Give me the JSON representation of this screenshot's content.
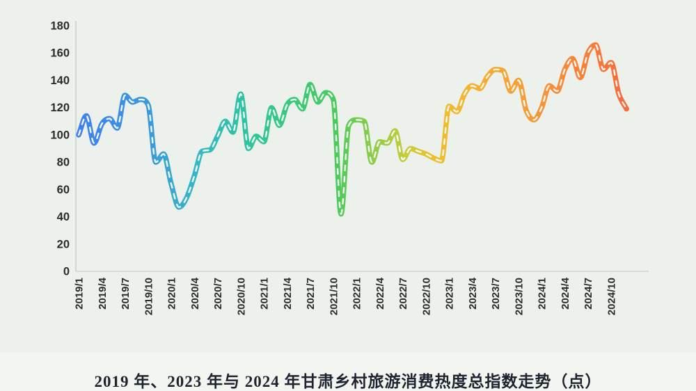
{
  "page": {
    "background": "#edf1ec",
    "footer_background": "#f3f5f0"
  },
  "chart_data": {
    "type": "line",
    "title": "2019 年、2023 年与 2024 年甘肃乡村旅游消费热度总指数走势（点）",
    "xlabel": "",
    "ylabel": "",
    "ylim": [
      0,
      180
    ],
    "y_ticks": [
      0,
      20,
      40,
      60,
      80,
      100,
      120,
      140,
      160,
      180
    ],
    "x_tick_step": 3,
    "grid": false,
    "legend": "none",
    "x": [
      "2019/1",
      "2019/2",
      "2019/3",
      "2019/4",
      "2019/5",
      "2019/6",
      "2019/7",
      "2019/8",
      "2019/9",
      "2019/10",
      "2019/11",
      "2019/12",
      "2020/1",
      "2020/2",
      "2020/3",
      "2020/4",
      "2020/5",
      "2020/6",
      "2020/7",
      "2020/8",
      "2020/9",
      "2020/10",
      "2020/11",
      "2020/12",
      "2021/1",
      "2021/2",
      "2021/3",
      "2021/4",
      "2021/5",
      "2021/6",
      "2021/7",
      "2021/8",
      "2021/9",
      "2021/10",
      "2021/11",
      "2021/12",
      "2022/1",
      "2022/2",
      "2022/3",
      "2022/4",
      "2022/5",
      "2022/6",
      "2022/7",
      "2022/8",
      "2022/9",
      "2022/10",
      "2022/11",
      "2022/12",
      "2023/1",
      "2023/2",
      "2023/3",
      "2023/4",
      "2023/5",
      "2023/6",
      "2023/7",
      "2023/8",
      "2023/9",
      "2023/10",
      "2023/11",
      "2023/12",
      "2024/1",
      "2024/2",
      "2024/3",
      "2024/4",
      "2024/5",
      "2024/6",
      "2024/7",
      "2024/8",
      "2024/9",
      "2024/10",
      "2024/11",
      "2024/12"
    ],
    "values": [
      100,
      114,
      94,
      108,
      112,
      105,
      129,
      124,
      126,
      122,
      80,
      86,
      64,
      47,
      54,
      70,
      88,
      89,
      99,
      110,
      102,
      130,
      90,
      99,
      95,
      120,
      107,
      122,
      126,
      119,
      137,
      124,
      131,
      126,
      42,
      107,
      111,
      110,
      80,
      95,
      94,
      103,
      82,
      90,
      88,
      86,
      83,
      81,
      121,
      117,
      130,
      136,
      134,
      143,
      148,
      147,
      132,
      140,
      118,
      111,
      120,
      136,
      132,
      148,
      156,
      142,
      160,
      166,
      148,
      153,
      130,
      119
    ],
    "line_style": {
      "stroke_width": 7.5,
      "center_dash_color": "#ffffff",
      "gradient_stops": [
        {
          "offset": 0.0,
          "color": "#3f80f0"
        },
        {
          "offset": 0.13,
          "color": "#3a9bd9"
        },
        {
          "offset": 0.22,
          "color": "#34b9c4"
        },
        {
          "offset": 0.31,
          "color": "#30c49f"
        },
        {
          "offset": 0.4,
          "color": "#3aca74"
        },
        {
          "offset": 0.47,
          "color": "#4ccb5d"
        },
        {
          "offset": 0.53,
          "color": "#86cd4c"
        },
        {
          "offset": 0.6,
          "color": "#c9cc3c"
        },
        {
          "offset": 0.65,
          "color": "#eec02f"
        },
        {
          "offset": 0.72,
          "color": "#f3b231"
        },
        {
          "offset": 0.8,
          "color": "#f6a037"
        },
        {
          "offset": 0.9,
          "color": "#f88538"
        },
        {
          "offset": 1.0,
          "color": "#f76b3c"
        }
      ]
    },
    "axis_style": {
      "line_color": "#c9cec9",
      "tick_label_color": "#2b2b2b"
    }
  }
}
